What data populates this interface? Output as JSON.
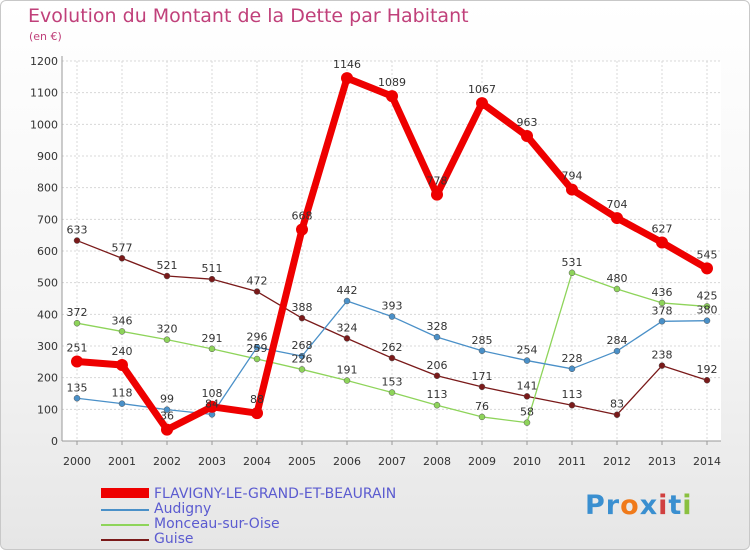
{
  "header": {
    "title": "Evolution du Montant de la Dette par Habitant",
    "unit": "(en €)"
  },
  "logo": {
    "text": "Proxiti",
    "letters": [
      "P",
      "r",
      "o",
      "x",
      "i",
      "t",
      "i"
    ],
    "colors": [
      "#3a8fd0",
      "#3a8fd0",
      "#f07a1a",
      "#3a8fd0",
      "#d04040",
      "#3a8fd0",
      "#8ac040"
    ]
  },
  "chart_data": {
    "type": "line",
    "x": [
      "2000",
      "2001",
      "2002",
      "2003",
      "2004",
      "2005",
      "2006",
      "2007",
      "2008",
      "2009",
      "2010",
      "2011",
      "2012",
      "2013",
      "2014"
    ],
    "ylim": [
      0,
      1200
    ],
    "yticks": [
      0,
      100,
      200,
      300,
      400,
      500,
      600,
      700,
      800,
      900,
      1000,
      1100,
      1200
    ],
    "grid": true,
    "legend": "bottom",
    "series": [
      {
        "name": "Guise",
        "color": "#7a1a1a",
        "width": 1.3,
        "marker": 3,
        "values": [
          633,
          577,
          521,
          511,
          472,
          388,
          324,
          262,
          206,
          171,
          141,
          113,
          83,
          238,
          192
        ]
      },
      {
        "name": "Monceau-sur-Oise",
        "color": "#8ed45a",
        "width": 1.3,
        "marker": 3,
        "values": [
          372,
          346,
          320,
          291,
          259,
          226,
          191,
          153,
          113,
          76,
          58,
          531,
          480,
          436,
          425
        ]
      },
      {
        "name": "Audigny",
        "color": "#4a90c8",
        "width": 1.3,
        "marker": 3,
        "values": [
          135,
          118,
          99,
          84,
          296,
          268,
          442,
          393,
          328,
          285,
          254,
          228,
          284,
          378,
          380
        ]
      },
      {
        "name": "FLAVIGNY-LE-GRAND-ET-BEAURAIN",
        "color": "#ee0000",
        "width": 7,
        "marker": 6,
        "values": [
          251,
          240,
          36,
          108,
          88,
          668,
          1146,
          1089,
          778,
          1067,
          963,
          794,
          704,
          627,
          545
        ]
      }
    ]
  }
}
